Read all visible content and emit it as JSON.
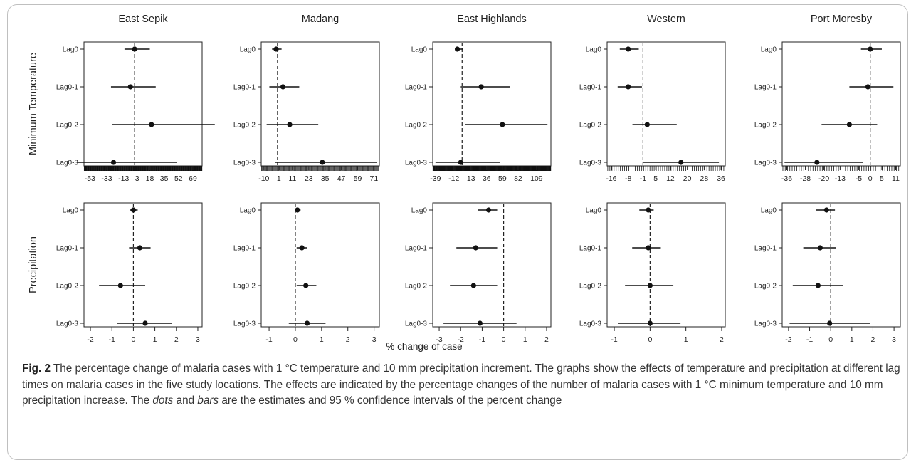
{
  "figure": {
    "columns": [
      "East Sepik",
      "Madang",
      "East Highlands",
      "Western",
      "Port Moresby"
    ],
    "row_labels": [
      "Minimum Temperature",
      "Precipitation"
    ],
    "xlabel": "% change of case",
    "lags": [
      "Lag0",
      "Lag0-1",
      "Lag0-2",
      "Lag0-3"
    ]
  },
  "caption": {
    "label": "Fig. 2",
    "part1": " The percentage change of malaria cases with 1 °C temperature and 10 mm precipitation increment. The graphs show the effects of temperature and precipitation at different lag times on malaria cases in the five study locations. The effects are indicated by the percentage changes of the number of malaria cases with 1 °C minimum temperature and 10 mm precipitation increase. The ",
    "dots": "dots",
    "part2": " and ",
    "bars": "bars",
    "part3": " are the estimates and 95 % confidence intervals of the percent change"
  },
  "chart_data": [
    {
      "type": "scatter",
      "row": 0,
      "col": 0,
      "ticks": [
        -53,
        -33,
        -13,
        3,
        18,
        35,
        52,
        69
      ],
      "xlim": [
        -60,
        80
      ],
      "ref": 0,
      "minor_rug": true,
      "points": [
        {
          "y": "Lag0",
          "est": 0,
          "lo": -12,
          "hi": 18
        },
        {
          "y": "Lag0-1",
          "est": -5,
          "lo": -28,
          "hi": 25
        },
        {
          "y": "Lag0-2",
          "est": 20,
          "lo": -27,
          "hi": 95
        },
        {
          "y": "Lag0-3",
          "est": -25,
          "lo": -68,
          "hi": 50
        }
      ]
    },
    {
      "type": "scatter",
      "row": 0,
      "col": 1,
      "ticks": [
        -10,
        1,
        11,
        23,
        35,
        47,
        59,
        71
      ],
      "xlim": [
        -12,
        75
      ],
      "ref": 0,
      "minor_rug": true,
      "points": [
        {
          "y": "Lag0",
          "est": -1,
          "lo": -4,
          "hi": 3
        },
        {
          "y": "Lag0-1",
          "est": 4,
          "lo": -6,
          "hi": 16
        },
        {
          "y": "Lag0-2",
          "est": 9,
          "lo": -8,
          "hi": 30
        },
        {
          "y": "Lag0-3",
          "est": 33,
          "lo": -2,
          "hi": 73
        }
      ]
    },
    {
      "type": "scatter",
      "row": 0,
      "col": 2,
      "ticks": [
        -39,
        -12,
        13,
        36,
        59,
        82,
        109
      ],
      "xlim": [
        -43,
        130
      ],
      "ref": 0,
      "minor_rug": true,
      "points": [
        {
          "y": "Lag0",
          "est": -7,
          "lo": -9,
          "hi": 1
        },
        {
          "y": "Lag0-1",
          "est": 28,
          "lo": -2,
          "hi": 70
        },
        {
          "y": "Lag0-2",
          "est": 59,
          "lo": 4,
          "hi": 125
        },
        {
          "y": "Lag0-3",
          "est": -2,
          "lo": -39,
          "hi": 55
        }
      ]
    },
    {
      "type": "scatter",
      "row": 0,
      "col": 3,
      "ticks": [
        -16,
        -8,
        -1,
        5,
        12,
        20,
        28,
        36
      ],
      "xlim": [
        -18,
        38
      ],
      "ref": -1,
      "minor_rug": true,
      "points": [
        {
          "y": "Lag0",
          "est": -8,
          "lo": -12,
          "hi": -3
        },
        {
          "y": "Lag0-1",
          "est": -8,
          "lo": -13,
          "hi": -1.5
        },
        {
          "y": "Lag0-2",
          "est": 1,
          "lo": -6,
          "hi": 15
        },
        {
          "y": "Lag0-3",
          "est": 17,
          "lo": -1,
          "hi": 35
        }
      ]
    },
    {
      "type": "scatter",
      "row": 0,
      "col": 4,
      "ticks": [
        -36,
        -28,
        -20,
        -13,
        -5,
        0,
        5,
        11
      ],
      "xlim": [
        -38,
        13
      ],
      "ref": 0,
      "minor_rug": true,
      "points": [
        {
          "y": "Lag0",
          "est": 0,
          "lo": -4,
          "hi": 5
        },
        {
          "y": "Lag0-1",
          "est": -1,
          "lo": -9,
          "hi": 10
        },
        {
          "y": "Lag0-2",
          "est": -9,
          "lo": -21,
          "hi": 3
        },
        {
          "y": "Lag0-3",
          "est": -23,
          "lo": -37,
          "hi": -3
        }
      ]
    },
    {
      "type": "scatter",
      "row": 1,
      "col": 0,
      "ticks": [
        -2,
        -1,
        0,
        1,
        2,
        3
      ],
      "xlim": [
        -2.3,
        3.2
      ],
      "ref": 0,
      "minor_rug": false,
      "points": [
        {
          "y": "Lag0",
          "est": 0,
          "lo": -0.15,
          "hi": 0.2
        },
        {
          "y": "Lag0-1",
          "est": 0.3,
          "lo": -0.2,
          "hi": 0.8
        },
        {
          "y": "Lag0-2",
          "est": -0.6,
          "lo": -1.6,
          "hi": 0.55
        },
        {
          "y": "Lag0-3",
          "est": 0.55,
          "lo": -0.75,
          "hi": 1.8
        }
      ]
    },
    {
      "type": "scatter",
      "row": 1,
      "col": 1,
      "ticks": [
        -1,
        0,
        1,
        2,
        3
      ],
      "xlim": [
        -1.3,
        3.2
      ],
      "ref": 0,
      "minor_rug": false,
      "points": [
        {
          "y": "Lag0",
          "est": 0.08,
          "lo": 0,
          "hi": 0.2
        },
        {
          "y": "Lag0-1",
          "est": 0.25,
          "lo": 0.05,
          "hi": 0.45
        },
        {
          "y": "Lag0-2",
          "est": 0.4,
          "lo": 0.05,
          "hi": 0.8
        },
        {
          "y": "Lag0-3",
          "est": 0.45,
          "lo": -0.25,
          "hi": 1.15
        }
      ]
    },
    {
      "type": "scatter",
      "row": 1,
      "col": 2,
      "ticks": [
        -3,
        -2,
        -1,
        0,
        1,
        2
      ],
      "xlim": [
        -3.3,
        2.2
      ],
      "ref": 0,
      "minor_rug": false,
      "points": [
        {
          "y": "Lag0",
          "est": -0.7,
          "lo": -1.2,
          "hi": -0.3
        },
        {
          "y": "Lag0-1",
          "est": -1.3,
          "lo": -2.2,
          "hi": -0.3
        },
        {
          "y": "Lag0-2",
          "est": -1.4,
          "lo": -2.5,
          "hi": -0.3
        },
        {
          "y": "Lag0-3",
          "est": -1.1,
          "lo": -2.8,
          "hi": 0.6
        }
      ]
    },
    {
      "type": "scatter",
      "row": 1,
      "col": 3,
      "ticks": [
        -1,
        0,
        1,
        2
      ],
      "xlim": [
        -1.2,
        2.1
      ],
      "ref": 0,
      "minor_rug": false,
      "points": [
        {
          "y": "Lag0",
          "est": -0.05,
          "lo": -0.3,
          "hi": 0.1
        },
        {
          "y": "Lag0-1",
          "est": -0.05,
          "lo": -0.5,
          "hi": 0.3
        },
        {
          "y": "Lag0-2",
          "est": 0,
          "lo": -0.7,
          "hi": 0.65
        },
        {
          "y": "Lag0-3",
          "est": 0,
          "lo": -0.9,
          "hi": 0.85
        }
      ]
    },
    {
      "type": "scatter",
      "row": 1,
      "col": 4,
      "ticks": [
        -2,
        -1,
        0,
        1,
        2,
        3
      ],
      "xlim": [
        -2.3,
        3.3
      ],
      "ref": 0,
      "minor_rug": false,
      "points": [
        {
          "y": "Lag0",
          "est": -0.2,
          "lo": -0.7,
          "hi": 0.2
        },
        {
          "y": "Lag0-1",
          "est": -0.5,
          "lo": -1.3,
          "hi": 0.25
        },
        {
          "y": "Lag0-2",
          "est": -0.6,
          "lo": -1.8,
          "hi": 0.6
        },
        {
          "y": "Lag0-3",
          "est": -0.05,
          "lo": -1.95,
          "hi": 1.85
        }
      ]
    }
  ]
}
